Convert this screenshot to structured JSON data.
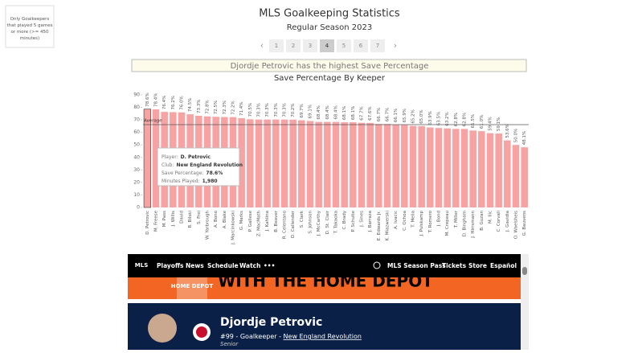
{
  "filter_note": "Only Goalkeepers that played 5 games or more (>= 450 minutes)",
  "chart_data": {
    "type": "bar",
    "title": "MLS Goalkeeping Statistics",
    "subtitle": "Regular Season 2023",
    "pages": [
      "1",
      "2",
      "3",
      "4",
      "5",
      "6",
      "7"
    ],
    "active_page": "4",
    "highlight": "Djordje Petrovic has the highest Save Percentage",
    "chart_title": "Save Percentage By Keeper",
    "color": "#f7a3a3",
    "categories": [
      "D. Petrovic",
      "M. Freese",
      "M. Pass",
      "J. Willis",
      "David",
      "R. Bilski",
      "S. Frei",
      "W. Yarbrough",
      "A. Bono",
      "A. Blake",
      "J. Marcinkowski",
      "G. Marks",
      "P. Gallese",
      "Z. MacMath",
      "J. Kahlina",
      "B. Beaver",
      "R. Celentano",
      "D. Callender",
      "S. Clark",
      "S. Johnson",
      "J. McCarthy",
      "D. St. Clair",
      "T. Takaoka",
      "C. Brady",
      "P. Schulte",
      "J. Sines",
      "J. Barraza",
      "E. Edwards Jr.",
      "K. Miazwerski",
      "A. Ivacic",
      "C. Ochoa",
      "T. Melia",
      "J. Pulskamp",
      "T. Romero",
      "J. Bond",
      "M. Crepeau",
      "T. Miller",
      "D. Bingham",
      "J. Hirrsmann",
      "B. Guzan",
      "M. Ilic",
      "C. Corvali",
      "J. Gavidia",
      "O. Waelsheis",
      "G. Bauvens"
    ],
    "values": [
      78.6,
      78.4,
      76.4,
      76.2,
      76.0,
      74.5,
      73.3,
      72.8,
      72.5,
      72.3,
      72.2,
      71.4,
      70.5,
      70.3,
      70.3,
      70.3,
      70.3,
      70.2,
      69.7,
      69.1,
      68.4,
      68.4,
      68.4,
      68.1,
      68.1,
      67.7,
      67.6,
      66.7,
      66.7,
      66.1,
      65.9,
      65.2,
      65.0,
      63.9,
      63.5,
      63.2,
      62.8,
      62.8,
      61.5,
      61.0,
      59.4,
      59.1,
      53.6,
      50.0,
      48.1
    ],
    "value_labels": [
      "78.6%",
      "78.4%",
      "76.4%",
      "76.2%",
      "76.0%",
      "74.5%",
      "73.3%",
      "72.8%",
      "72.5%",
      "72.3%",
      "72.2%",
      "71.4%",
      "70.5%",
      "70.3%",
      "70.3%",
      "70.3%",
      "70.3%",
      "70.2%",
      "69.7%",
      "69.1%",
      "68.4%",
      "68.4%",
      "68.4%",
      "68.1%",
      "68.1%",
      "67.7%",
      "67.6%",
      "66.7%",
      "66.7%",
      "66.1%",
      "65.9%",
      "65.2%",
      "65.0%",
      "63.9%",
      "63.5%",
      "63.2%",
      "62.8%",
      "62.8%",
      "61.5%",
      "61.0%",
      "59.4%",
      "59.1%",
      "53.6%",
      "50.0%",
      "48.1%"
    ],
    "ylim": [
      0,
      90
    ],
    "yticks": [
      0,
      10,
      20,
      30,
      40,
      50,
      60,
      70,
      80,
      90
    ],
    "reference_line": {
      "label": "Average",
      "value": 66.2
    },
    "tooltip": [
      [
        "Player:",
        "D. Petrovic"
      ],
      [
        "Club:",
        "New England Revolution"
      ],
      [
        "Save Percentage:",
        "78.6%"
      ],
      [
        "Minutes Played:",
        "1,980"
      ]
    ]
  },
  "embed": {
    "nav": [
      "Playoffs",
      "News",
      "Schedule",
      "Watch",
      "•••"
    ],
    "nav_right": [
      "MLS Season Pass",
      "Tickets",
      "Store",
      "Español"
    ],
    "logo": "MLS",
    "banner": "WITH THE HOME DEPOT",
    "banner_logo": "HOME DEPOT",
    "player_name": "Djordje Petrovic",
    "player_info": "#99 - Goalkeeper - ",
    "player_club": "New England Revolution",
    "player_class": "Senior"
  }
}
